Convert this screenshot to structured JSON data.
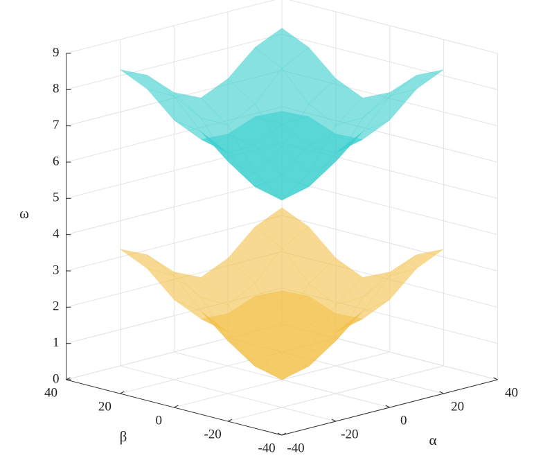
{
  "chart_data": {
    "type": "surface",
    "xlabel": "α",
    "ylabel": "β",
    "zlabel": "ω",
    "x": [
      -30,
      -20,
      -10,
      0,
      10,
      20,
      30
    ],
    "y": [
      -30,
      -20,
      -10,
      0,
      10,
      20,
      30
    ],
    "xlim": [
      -40,
      40
    ],
    "ylim": [
      -40,
      40
    ],
    "zlim": [
      0,
      9
    ],
    "xticks": [
      -40,
      -20,
      0,
      20,
      40
    ],
    "yticks": [
      -40,
      -20,
      0,
      20,
      40
    ],
    "zticks": [
      0,
      1,
      2,
      3,
      4,
      5,
      6,
      7,
      8,
      9
    ],
    "grid": true,
    "series": [
      {
        "color": "#f2c14e",
        "values": [
          [
            3.6,
            3.26,
            2.59,
            2.25,
            2.59,
            3.26,
            3.6
          ],
          [
            3.26,
            2.87,
            2.08,
            1.69,
            2.08,
            2.87,
            3.26
          ],
          [
            2.59,
            2.08,
            1.07,
            0.56,
            1.07,
            2.08,
            2.59
          ],
          [
            2.25,
            1.69,
            0.56,
            0,
            0.56,
            1.69,
            2.25
          ],
          [
            2.59,
            2.08,
            1.07,
            0.56,
            1.07,
            2.08,
            2.59
          ],
          [
            3.26,
            2.87,
            2.08,
            1.69,
            2.08,
            2.87,
            3.26
          ],
          [
            3.6,
            3.26,
            2.59,
            2.25,
            2.59,
            3.26,
            3.6
          ]
        ]
      },
      {
        "color": "#3dcfcf",
        "values": [
          [
            8.55,
            8.21,
            7.54,
            7.2,
            7.54,
            8.21,
            8.55
          ],
          [
            8.21,
            7.82,
            7.03,
            6.64,
            7.03,
            7.82,
            8.21
          ],
          [
            7.54,
            7.03,
            6.02,
            5.51,
            6.02,
            7.03,
            7.54
          ],
          [
            7.2,
            6.64,
            5.51,
            4.95,
            5.51,
            6.64,
            7.2
          ],
          [
            7.54,
            7.03,
            6.02,
            5.51,
            6.02,
            7.03,
            7.54
          ],
          [
            8.21,
            7.82,
            7.03,
            6.64,
            7.03,
            7.82,
            8.21
          ],
          [
            8.55,
            8.21,
            7.54,
            7.2,
            7.54,
            8.21,
            8.55
          ]
        ]
      }
    ]
  }
}
